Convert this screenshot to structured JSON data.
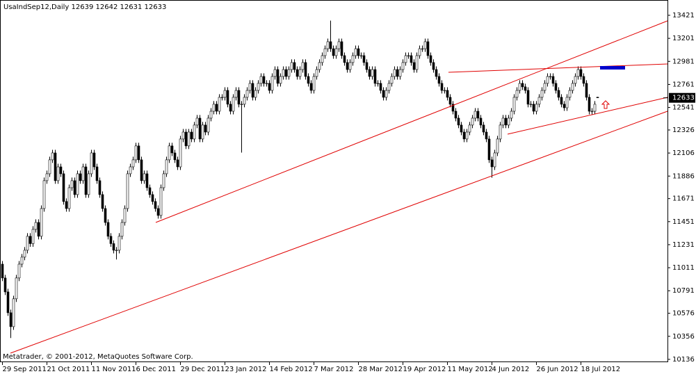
{
  "chart_data": {
    "type": "candlestick",
    "title": "UsaIndSep12,Daily  12639 12642 12631 12633",
    "footer": "Metatrader, © 2001-2012, MetaQuotes Software Corp.",
    "categories": [
      "29 Sep 2011",
      null,
      null,
      null,
      null,
      null,
      null,
      null,
      null,
      null,
      null,
      null,
      null,
      null,
      null,
      null,
      "21 Oct 2011",
      null,
      null,
      null,
      null,
      null,
      null,
      null,
      null,
      null,
      null,
      null,
      null,
      null,
      null,
      null,
      "11 Nov 2011",
      null,
      null,
      null,
      null,
      null,
      null,
      null,
      null,
      null,
      null,
      null,
      null,
      null,
      null,
      null,
      "6 Dec 2011",
      null,
      null,
      null,
      null,
      null,
      null,
      null,
      null,
      null,
      null,
      null,
      null,
      null,
      null,
      null,
      "29 Dec 2011",
      null,
      null,
      null,
      null,
      null,
      null,
      null,
      null,
      null,
      null,
      null,
      null,
      null,
      null,
      null,
      "23 Jan 2012",
      null,
      null,
      null,
      null,
      null,
      null,
      null,
      null,
      null,
      null,
      null,
      null,
      null,
      null,
      null,
      "14 Feb 2012",
      null,
      null,
      null,
      null,
      null,
      null,
      null,
      null,
      null,
      null,
      null,
      null,
      null,
      null,
      null,
      "7 Mar 2012",
      null,
      null,
      null,
      null,
      null,
      null,
      null,
      null,
      null,
      null,
      null,
      null,
      null,
      null,
      null,
      "28 Mar 2012",
      null,
      null,
      null,
      null,
      null,
      null,
      null,
      null,
      null,
      null,
      null,
      null,
      null,
      null,
      null,
      "19 Apr 2012",
      null,
      null,
      null,
      null,
      null,
      null,
      null,
      null,
      null,
      null,
      null,
      null,
      null,
      null,
      null,
      "11 May 2012",
      null,
      null,
      null,
      null,
      null,
      null,
      null,
      null,
      null,
      null,
      null,
      null,
      null,
      null,
      null,
      "4 Jun 2012",
      null,
      null,
      null,
      null,
      null,
      null,
      null,
      null,
      null,
      null,
      null,
      null,
      null,
      null,
      null,
      "26 Jun 2012",
      null,
      null,
      null,
      null,
      null,
      null,
      null,
      null,
      null,
      null,
      null,
      null,
      null,
      null,
      null,
      "18 Jul 2012",
      null,
      null,
      null,
      null,
      null,
      null
    ],
    "open": [
      11045,
      10913,
      10780,
      10581,
      10448,
      10714,
      10913,
      11045,
      11112,
      11178,
      11311,
      11241,
      11377,
      11443,
      11311,
      11576,
      11842,
      11908,
      12041,
      12107,
      11842,
      11974,
      11908,
      11643,
      11576,
      11775,
      11842,
      11709,
      11908,
      11842,
      11974,
      11709,
      11908,
      12107,
      11974,
      11842,
      11709,
      11576,
      11443,
      11311,
      11241,
      11178,
      11178,
      11311,
      11443,
      11576,
      11908,
      11974,
      12041,
      12174,
      12041,
      11842,
      11908,
      11775,
      11709,
      11643,
      11576,
      11510,
      11775,
      11908,
      12041,
      12174,
      12107,
      12041,
      11974,
      12240,
      12306,
      12174,
      12306,
      12240,
      12373,
      12439,
      12240,
      12373,
      12306,
      12439,
      12505,
      12572,
      12505,
      12638,
      12638,
      12704,
      12572,
      12505,
      12638,
      12704,
      12572,
      12572,
      12638,
      12704,
      12771,
      12638,
      12704,
      12771,
      12837,
      12771,
      12771,
      12704,
      12837,
      12903,
      12771,
      12837,
      12903,
      12837,
      12903,
      12970,
      12903,
      12837,
      12903,
      12970,
      12837,
      12771,
      12704,
      12837,
      12903,
      12970,
      13036,
      13102,
      13169,
      13102,
      13036,
      13102,
      13169,
      13036,
      12970,
      12903,
      12970,
      13036,
      13102,
      13036,
      13036,
      12970,
      12903,
      12837,
      12903,
      12771,
      12771,
      12704,
      12638,
      12704,
      12771,
      12837,
      12903,
      12837,
      12903,
      12970,
      13036,
      13036,
      12970,
      12903,
      13036,
      13102,
      13102,
      13169,
      13036,
      12970,
      12903,
      12837,
      12771,
      12704,
      12704,
      12638,
      12572,
      12505,
      12439,
      12373,
      12306,
      12240,
      12306,
      12373,
      12439,
      12505,
      12439,
      12373,
      12306,
      12240,
      12041,
      11974,
      12107,
      12240,
      12373,
      12439,
      12373,
      12439,
      12505,
      12638,
      12704,
      12771,
      12738,
      12704,
      12572,
      12572,
      12505,
      12572,
      12638,
      12704,
      12771,
      12837,
      12837,
      12771,
      12704,
      12638,
      12572,
      12538,
      12638,
      12704,
      12771,
      12837,
      12903,
      12837,
      12771,
      12638,
      12505,
      12505,
      12639
    ],
    "high": [
      11075,
      10943,
      10810,
      10611,
      10744,
      10943,
      11075,
      11142,
      11208,
      11341,
      11341,
      11407,
      11473,
      11473,
      11606,
      11872,
      11938,
      12071,
      12137,
      12137,
      12004,
      12004,
      11938,
      11673,
      11805,
      11872,
      11872,
      11938,
      11938,
      12004,
      12004,
      11938,
      12137,
      12137,
      12004,
      11872,
      11739,
      11606,
      11473,
      11341,
      11271,
      11208,
      11341,
      11473,
      11606,
      11938,
      12004,
      12071,
      12204,
      12204,
      12071,
      11938,
      11938,
      11805,
      11739,
      11673,
      11606,
      11805,
      11938,
      12071,
      12204,
      12204,
      12137,
      12071,
      12270,
      12336,
      12336,
      12336,
      12336,
      12403,
      12469,
      12469,
      12403,
      12403,
      12469,
      12535,
      12602,
      12602,
      12668,
      12668,
      12734,
      12734,
      12602,
      12668,
      12734,
      12734,
      12602,
      12668,
      12734,
      12801,
      12801,
      12734,
      12801,
      12867,
      12867,
      12801,
      12801,
      12867,
      12933,
      12933,
      12867,
      12933,
      12933,
      12933,
      13000,
      13000,
      12933,
      12933,
      13000,
      13000,
      12867,
      12801,
      12867,
      12933,
      13000,
      13066,
      13132,
      13199,
      13370,
      13132,
      13132,
      13199,
      13199,
      13066,
      13000,
      13000,
      13066,
      13132,
      13132,
      13066,
      13066,
      13000,
      12933,
      12933,
      12933,
      12801,
      12801,
      12734,
      12734,
      12801,
      12867,
      12933,
      12933,
      12933,
      13000,
      13066,
      13066,
      13066,
      13000,
      13066,
      13132,
      13132,
      13199,
      13199,
      13066,
      13000,
      12933,
      12867,
      12801,
      12734,
      12734,
      12668,
      12602,
      12535,
      12469,
      12403,
      12336,
      12336,
      12403,
      12469,
      12535,
      12535,
      12469,
      12403,
      12336,
      12270,
      12071,
      12137,
      12270,
      12403,
      12469,
      12469,
      12469,
      12535,
      12668,
      12734,
      12801,
      12801,
      12768,
      12734,
      12602,
      12602,
      12602,
      12668,
      12734,
      12801,
      12867,
      12867,
      12867,
      12801,
      12734,
      12668,
      12602,
      12668,
      12734,
      12801,
      12867,
      12933,
      12933,
      12867,
      12801,
      12668,
      12535,
      12602,
      12642
    ],
    "low": [
      10883,
      10750,
      10551,
      10340,
      10418,
      10684,
      10883,
      11015,
      11082,
      11148,
      11211,
      11211,
      11347,
      11281,
      11281,
      11546,
      11812,
      11878,
      12011,
      11812,
      11812,
      11878,
      11613,
      11546,
      11546,
      11745,
      11679,
      11679,
      11812,
      11812,
      11679,
      11679,
      11878,
      11944,
      11812,
      11679,
      11546,
      11413,
      11281,
      11211,
      11148,
      11090,
      11148,
      11281,
      11413,
      11546,
      11878,
      11944,
      12011,
      12011,
      11812,
      11812,
      11745,
      11679,
      11613,
      11546,
      11480,
      11480,
      11745,
      11878,
      12011,
      12077,
      12011,
      11944,
      11944,
      12210,
      12144,
      12144,
      12210,
      12210,
      12343,
      12210,
      12210,
      12276,
      12276,
      12409,
      12475,
      12475,
      12475,
      12608,
      12608,
      12542,
      12475,
      12475,
      12608,
      12542,
      12110,
      12542,
      12608,
      12674,
      12608,
      12608,
      12674,
      12741,
      12741,
      12741,
      12674,
      12674,
      12807,
      12741,
      12741,
      12807,
      12807,
      12807,
      12873,
      12873,
      12807,
      12807,
      12873,
      12807,
      12741,
      12674,
      12674,
      12807,
      12873,
      12940,
      13006,
      13072,
      13072,
      13006,
      13006,
      13072,
      13006,
      12940,
      12873,
      12873,
      12940,
      13006,
      13006,
      13006,
      12940,
      12873,
      12807,
      12807,
      12741,
      12741,
      12674,
      12608,
      12608,
      12674,
      12741,
      12807,
      12807,
      12807,
      12873,
      12940,
      13006,
      12940,
      12873,
      12873,
      13006,
      13072,
      13072,
      13006,
      12940,
      12873,
      12807,
      12741,
      12674,
      12674,
      12608,
      12542,
      12475,
      12409,
      12343,
      12276,
      12210,
      12210,
      12276,
      12343,
      12409,
      12409,
      12343,
      12276,
      12210,
      12011,
      11870,
      11944,
      12077,
      12210,
      12343,
      12343,
      12343,
      12409,
      12475,
      12608,
      12674,
      12708,
      12674,
      12542,
      12542,
      12475,
      12475,
      12542,
      12608,
      12674,
      12741,
      12807,
      12741,
      12674,
      12608,
      12542,
      12508,
      12508,
      12608,
      12674,
      12741,
      12807,
      12807,
      12741,
      12608,
      12475,
      12475,
      12475,
      12631
    ],
    "close": [
      10913,
      10780,
      10581,
      10448,
      10714,
      10913,
      11045,
      11112,
      11178,
      11311,
      11241,
      11377,
      11443,
      11311,
      11576,
      11842,
      11908,
      12041,
      12107,
      11842,
      11974,
      11908,
      11643,
      11576,
      11775,
      11842,
      11709,
      11908,
      11842,
      11974,
      11709,
      11908,
      12107,
      11974,
      11842,
      11709,
      11576,
      11443,
      11311,
      11241,
      11178,
      11178,
      11311,
      11443,
      11576,
      11908,
      11974,
      12041,
      12174,
      12041,
      11842,
      11908,
      11775,
      11709,
      11643,
      11576,
      11510,
      11775,
      11908,
      12041,
      12174,
      12107,
      12041,
      11974,
      12240,
      12306,
      12174,
      12306,
      12240,
      12373,
      12439,
      12240,
      12373,
      12306,
      12439,
      12505,
      12572,
      12505,
      12638,
      12638,
      12704,
      12572,
      12505,
      12638,
      12704,
      12572,
      12572,
      12638,
      12704,
      12771,
      12638,
      12704,
      12771,
      12837,
      12771,
      12771,
      12704,
      12837,
      12903,
      12771,
      12837,
      12903,
      12837,
      12903,
      12970,
      12903,
      12837,
      12903,
      12970,
      12837,
      12771,
      12704,
      12837,
      12903,
      12970,
      13036,
      13102,
      13169,
      13102,
      13036,
      13102,
      13169,
      13036,
      12970,
      12903,
      12970,
      13036,
      13102,
      13036,
      13036,
      12970,
      12903,
      12837,
      12903,
      12771,
      12771,
      12704,
      12638,
      12704,
      12771,
      12837,
      12903,
      12837,
      12903,
      12970,
      13036,
      13036,
      12970,
      12903,
      13036,
      13102,
      13102,
      13169,
      13036,
      12970,
      12903,
      12837,
      12771,
      12704,
      12704,
      12638,
      12572,
      12505,
      12439,
      12373,
      12306,
      12240,
      12306,
      12373,
      12439,
      12505,
      12439,
      12373,
      12306,
      12240,
      12041,
      11974,
      12107,
      12240,
      12373,
      12439,
      12373,
      12439,
      12505,
      12638,
      12704,
      12771,
      12738,
      12704,
      12572,
      12572,
      12505,
      12572,
      12638,
      12704,
      12771,
      12837,
      12837,
      12771,
      12704,
      12638,
      12572,
      12538,
      12638,
      12704,
      12771,
      12837,
      12903,
      12837,
      12771,
      12638,
      12505,
      12505,
      12572,
      12633
    ],
    "up_color": "#ffffff",
    "down_color": "#000000",
    "wick_color": "#000000",
    "ylim": [
      10109,
      13567
    ],
    "yticks": [
      13421,
      13201,
      12981,
      12761,
      12541,
      12326,
      12106,
      11886,
      11671,
      11451,
      11231,
      11011,
      10791,
      10576,
      10356,
      10136
    ],
    "last_price": 12633
  }
}
